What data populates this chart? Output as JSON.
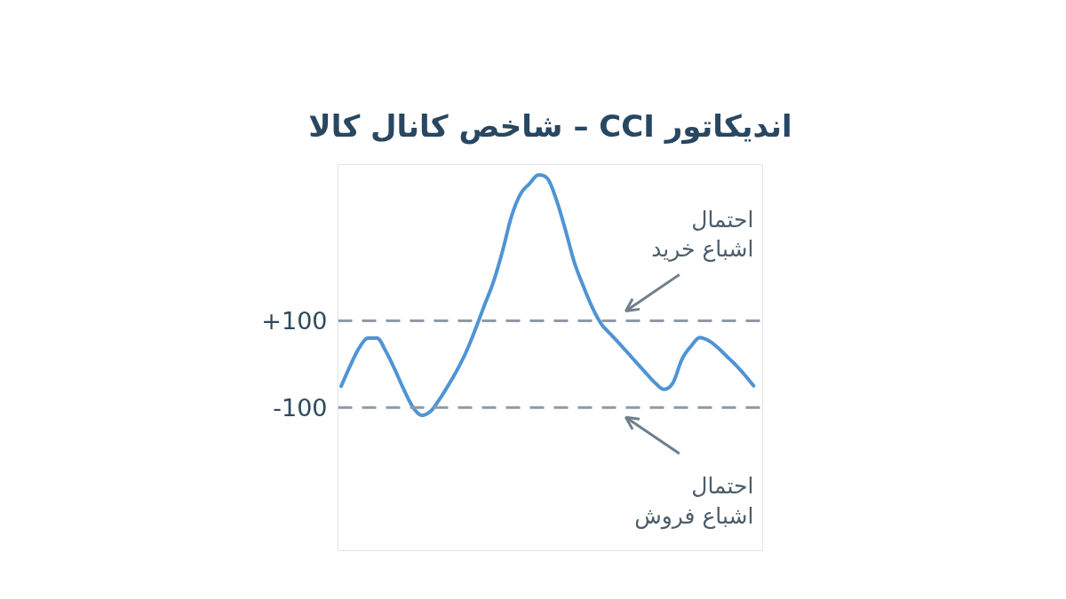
{
  "chart_data": {
    "type": "line",
    "title": "اندیکاتور CCI – شاخص کانال کالا",
    "categories": [
      null,
      null,
      null,
      null,
      null,
      null,
      null,
      null,
      null,
      null,
      null,
      null,
      null,
      null,
      null,
      null,
      null,
      null,
      null,
      null,
      null,
      null,
      null,
      null,
      null,
      null,
      null,
      null,
      null,
      null,
      null,
      null,
      null,
      null,
      null,
      null,
      null,
      null,
      null,
      null,
      null,
      null,
      null,
      null,
      null,
      null,
      null
    ],
    "values": [
      -51,
      -4,
      37,
      60,
      60,
      29,
      -13,
      -59,
      -99,
      -118,
      -108,
      -80,
      -47,
      -11,
      31,
      82,
      137,
      191,
      261,
      341,
      392,
      416,
      436,
      428,
      379,
      310,
      235,
      180,
      131,
      93,
      70,
      48,
      25,
      2,
      -21,
      -43,
      -58,
      -43,
      11,
      41,
      61,
      54,
      38,
      18,
      -2,
      -25,
      -50
    ],
    "color": "#4f94d4",
    "line_style": "solid",
    "grid": false,
    "ylim": [
      -430,
      460
    ],
    "yticks": [
      {
        "value": 100,
        "label": "+100"
      },
      {
        "value": -100,
        "label": "-100"
      }
    ],
    "ref_lines": [
      {
        "axis": "y",
        "value": 100,
        "color": "#8e9aa6",
        "line_style": "dashed"
      },
      {
        "axis": "y",
        "value": -100,
        "color": "#8e9aa6",
        "line_style": "dashed"
      }
    ],
    "annotations": [
      {
        "text": "احتمال\nاشباع خرید",
        "y": 100
      },
      {
        "text": "احتمال\nاشباع فروش",
        "y": -100
      }
    ]
  }
}
